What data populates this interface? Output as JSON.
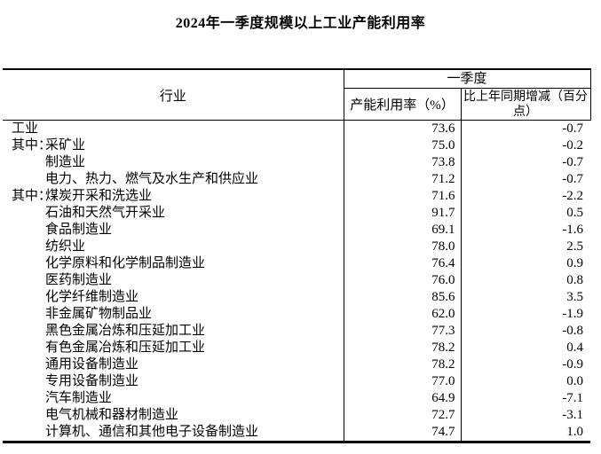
{
  "title": "2024年一季度规模以上工业产能利用率",
  "colors": {
    "text": "#000000",
    "border": "#000000",
    "background": "#ffffff"
  },
  "table": {
    "header": {
      "industry": "行业",
      "quarter": "一季度",
      "utilization": "产能利用率（%）",
      "change": "比上年同期增减（百分点）"
    },
    "rows": [
      {
        "prefix": "",
        "indent": false,
        "name": "工业",
        "utilization": "73.6",
        "change": "-0.7"
      },
      {
        "prefix": "其中：",
        "indent": true,
        "name": "采矿业",
        "utilization": "75.0",
        "change": "-0.2"
      },
      {
        "prefix": "",
        "indent": true,
        "name": "制造业",
        "utilization": "73.8",
        "change": "-0.7"
      },
      {
        "prefix": "",
        "indent": true,
        "name": "电力、热力、燃气及水生产和供应业",
        "utilization": "71.2",
        "change": "-0.7"
      },
      {
        "prefix": "其中：",
        "indent": true,
        "name": "煤炭开采和洗选业",
        "utilization": "71.6",
        "change": "-2.2"
      },
      {
        "prefix": "",
        "indent": true,
        "name": "石油和天然气开采业",
        "utilization": "91.7",
        "change": "0.5"
      },
      {
        "prefix": "",
        "indent": true,
        "name": "食品制造业",
        "utilization": "69.1",
        "change": "-1.6"
      },
      {
        "prefix": "",
        "indent": true,
        "name": "纺织业",
        "utilization": "78.0",
        "change": "2.5"
      },
      {
        "prefix": "",
        "indent": true,
        "name": "化学原料和化学制品制造业",
        "utilization": "76.4",
        "change": "0.9"
      },
      {
        "prefix": "",
        "indent": true,
        "name": "医药制造业",
        "utilization": "76.0",
        "change": "0.8"
      },
      {
        "prefix": "",
        "indent": true,
        "name": "化学纤维制造业",
        "utilization": "85.6",
        "change": "3.5"
      },
      {
        "prefix": "",
        "indent": true,
        "name": "非金属矿物制品业",
        "utilization": "62.0",
        "change": "-1.9"
      },
      {
        "prefix": "",
        "indent": true,
        "name": "黑色金属冶炼和压延加工业",
        "utilization": "77.3",
        "change": "-0.8"
      },
      {
        "prefix": "",
        "indent": true,
        "name": "有色金属冶炼和压延加工业",
        "utilization": "78.2",
        "change": "0.4"
      },
      {
        "prefix": "",
        "indent": true,
        "name": "通用设备制造业",
        "utilization": "78.2",
        "change": "-0.9"
      },
      {
        "prefix": "",
        "indent": true,
        "name": "专用设备制造业",
        "utilization": "77.0",
        "change": "0.0"
      },
      {
        "prefix": "",
        "indent": true,
        "name": "汽车制造业",
        "utilization": "64.9",
        "change": "-7.1"
      },
      {
        "prefix": "",
        "indent": true,
        "name": "电气机械和器材制造业",
        "utilization": "72.7",
        "change": "-3.1"
      },
      {
        "prefix": "",
        "indent": true,
        "name": "计算机、通信和其他电子设备制造业",
        "utilization": "74.7",
        "change": "1.0"
      }
    ]
  }
}
